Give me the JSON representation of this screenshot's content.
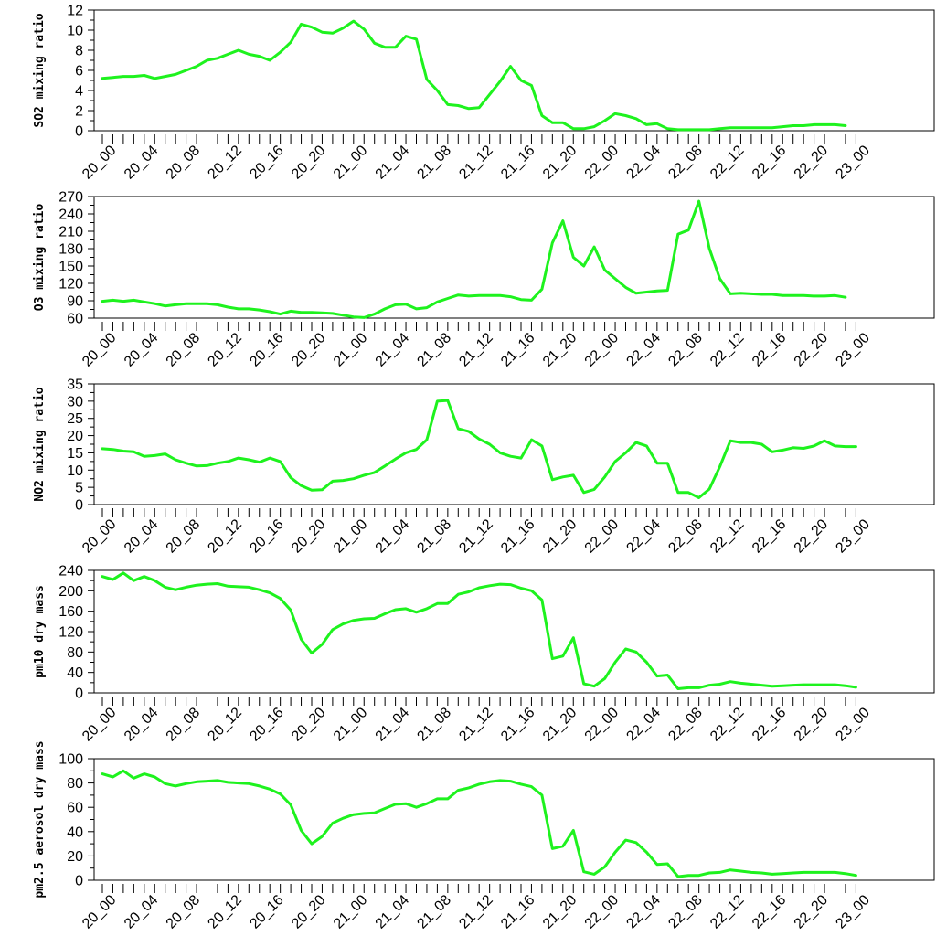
{
  "colors": {
    "line": "#1ef21e",
    "axis": "#000000",
    "background": "#ffffff"
  },
  "chart_data": [
    {
      "type": "line",
      "title": "",
      "xlabel": "",
      "ylabel": "SO2 mixing ratio",
      "ylim": [
        0,
        12
      ],
      "yticks": [
        0,
        2,
        4,
        6,
        8,
        10,
        12
      ],
      "ytick_labels": [
        "0",
        "2",
        "4",
        "6",
        "8",
        "10",
        "12"
      ],
      "x_tick_labels": [
        "20_00",
        "20_04",
        "20_08",
        "20_12",
        "20_16",
        "20_20",
        "21_00",
        "21_04",
        "21_08",
        "21_12",
        "21_16",
        "21_20",
        "22_00",
        "22_04",
        "22_08",
        "22_12",
        "22_16",
        "22_20",
        "23_00"
      ],
      "grid": false,
      "series": [
        {
          "values": [
            5.2,
            5.3,
            5.4,
            5.4,
            5.5,
            5.2,
            5.4,
            5.6,
            6.0,
            6.4,
            7.0,
            7.2,
            7.6,
            8.0,
            7.6,
            7.4,
            7.0,
            7.8,
            8.8,
            10.6,
            10.3,
            9.8,
            9.7,
            10.2,
            10.9,
            10.1,
            8.7,
            8.3,
            8.3,
            9.4,
            9.1,
            5.1,
            4.0,
            2.6,
            2.5,
            2.2,
            2.3,
            3.6,
            4.9,
            6.4,
            5.0,
            4.5,
            1.5,
            0.8,
            0.8,
            0.2,
            0.2,
            0.4,
            1.0,
            1.7,
            1.5,
            1.2,
            0.6,
            0.7,
            0.2,
            0.1,
            0.1,
            0.1,
            0.1,
            0.2,
            0.3,
            0.3,
            0.3,
            0.3,
            0.3,
            0.4,
            0.5,
            0.5,
            0.6,
            0.6,
            0.6,
            0.5
          ]
        }
      ]
    },
    {
      "type": "line",
      "title": "",
      "xlabel": "",
      "ylabel": "O3 mixing ratio",
      "ylim": [
        60,
        270
      ],
      "yticks": [
        60,
        90,
        120,
        150,
        180,
        210,
        240,
        270
      ],
      "ytick_labels": [
        "60",
        "90",
        "120",
        "150",
        "180",
        "210",
        "240",
        "270"
      ],
      "x_tick_labels": [
        "20_00",
        "20_04",
        "20_08",
        "20_12",
        "20_16",
        "20_20",
        "21_00",
        "21_04",
        "21_08",
        "21_12",
        "21_16",
        "21_20",
        "22_00",
        "22_04",
        "22_08",
        "22_12",
        "22_16",
        "22_20",
        "23_00"
      ],
      "grid": false,
      "series": [
        {
          "values": [
            89,
            91,
            89,
            91,
            88,
            85,
            81,
            83,
            85,
            85,
            85,
            83,
            79,
            76,
            76,
            74,
            71,
            67,
            72,
            70,
            70,
            69,
            68,
            65,
            62,
            61,
            67,
            76,
            83,
            84,
            76,
            78,
            88,
            94,
            100,
            98,
            99,
            99,
            99,
            97,
            92,
            91,
            110,
            190,
            228,
            165,
            150,
            183,
            143,
            128,
            113,
            103,
            105,
            107,
            108,
            205,
            212,
            262,
            180,
            128,
            102,
            103,
            102,
            101,
            101,
            99,
            99,
            99,
            98,
            98,
            99,
            96
          ]
        }
      ]
    },
    {
      "type": "line",
      "title": "",
      "xlabel": "",
      "ylabel": "NO2 mixing ratio",
      "ylim": [
        0,
        35
      ],
      "yticks": [
        0,
        5,
        10,
        15,
        20,
        25,
        30,
        35
      ],
      "ytick_labels": [
        "0",
        "5",
        "10",
        "15",
        "20",
        "25",
        "30",
        "35"
      ],
      "x_tick_labels": [
        "20_00",
        "20_04",
        "20_08",
        "20_12",
        "20_16",
        "20_20",
        "21_00",
        "21_04",
        "21_08",
        "21_12",
        "21_16",
        "21_20",
        "22_00",
        "22_04",
        "22_08",
        "22_12",
        "22_16",
        "22_20",
        "23_00"
      ],
      "grid": false,
      "series": [
        {
          "values": [
            16.2,
            16.0,
            15.5,
            15.3,
            14.0,
            14.2,
            14.7,
            13.0,
            12.0,
            11.2,
            11.3,
            12.0,
            12.5,
            13.5,
            13.0,
            12.3,
            13.5,
            12.5,
            7.8,
            5.5,
            4.2,
            4.3,
            6.8,
            7.0,
            7.5,
            8.5,
            9.3,
            11.2,
            13.2,
            15.0,
            16.0,
            18.8,
            30.0,
            30.2,
            22.0,
            21.2,
            19.0,
            17.5,
            15.0,
            14.0,
            13.5,
            18.8,
            17.0,
            7.2,
            8.0,
            8.5,
            3.5,
            4.4,
            8.0,
            12.5,
            15.0,
            18.0,
            17.0,
            12.0,
            12.0,
            3.5,
            3.5,
            2.0,
            4.5,
            11.0,
            18.5,
            18.0,
            18.0,
            17.5,
            15.3,
            15.8,
            16.5,
            16.3,
            17.0,
            18.5,
            17.0,
            16.8,
            16.8
          ]
        }
      ]
    },
    {
      "type": "line",
      "title": "",
      "xlabel": "",
      "ylabel": "pm10 dry mass",
      "ylim": [
        0,
        240
      ],
      "yticks": [
        0,
        40,
        80,
        120,
        160,
        200,
        240
      ],
      "ytick_labels": [
        "0",
        "40",
        "80",
        "120",
        "160",
        "200",
        "240"
      ],
      "x_tick_labels": [
        "20_00",
        "20_04",
        "20_08",
        "20_12",
        "20_16",
        "20_20",
        "21_00",
        "21_04",
        "21_08",
        "21_12",
        "21_16",
        "21_20",
        "22_00",
        "22_04",
        "22_08",
        "22_12",
        "22_16",
        "22_20",
        "23_00"
      ],
      "grid": false,
      "series": [
        {
          "values": [
            228,
            222,
            235,
            220,
            228,
            220,
            207,
            202,
            207,
            211,
            213,
            214,
            209,
            208,
            207,
            202,
            196,
            185,
            162,
            105,
            78,
            95,
            124,
            135,
            142,
            145,
            146,
            155,
            163,
            165,
            158,
            165,
            175,
            175,
            193,
            198,
            206,
            210,
            213,
            212,
            205,
            200,
            182,
            67,
            72,
            108,
            18,
            13,
            28,
            60,
            86,
            80,
            60,
            33,
            35,
            8,
            10,
            10,
            15,
            17,
            22,
            19,
            17,
            15,
            13,
            14,
            15,
            16,
            16,
            16,
            16,
            14,
            11
          ]
        }
      ]
    },
    {
      "type": "line",
      "title": "",
      "xlabel": "",
      "ylabel": "pm2.5 aerosol dry mass",
      "ylim": [
        0,
        100
      ],
      "yticks": [
        0,
        20,
        40,
        60,
        80,
        100
      ],
      "ytick_labels": [
        "0",
        "20",
        "40",
        "60",
        "80",
        "100"
      ],
      "x_tick_labels": [
        "20_00",
        "20_04",
        "20_08",
        "20_12",
        "20_16",
        "20_20",
        "21_00",
        "21_04",
        "21_08",
        "21_12",
        "21_16",
        "21_20",
        "22_00",
        "22_04",
        "22_08",
        "22_12",
        "22_16",
        "22_20",
        "23_00"
      ],
      "grid": false,
      "series": [
        {
          "values": [
            87.5,
            85,
            90,
            84,
            87.5,
            85,
            79.5,
            77.5,
            79.5,
            81,
            81.5,
            82,
            80.5,
            80,
            79.5,
            77.5,
            75,
            71,
            62,
            41,
            30,
            36,
            47,
            51,
            54,
            55,
            55.5,
            59,
            62.5,
            63,
            60,
            63,
            67,
            67,
            74,
            76,
            79,
            81,
            82,
            81.5,
            79,
            77,
            70,
            26,
            28,
            41,
            7,
            5,
            11,
            23,
            33,
            31,
            23,
            13,
            13.5,
            3,
            4,
            4,
            6,
            6.5,
            8.5,
            7.5,
            6.5,
            6,
            5,
            5.5,
            6,
            6.5,
            6.5,
            6.5,
            6.5,
            5.5,
            4
          ]
        }
      ]
    }
  ]
}
